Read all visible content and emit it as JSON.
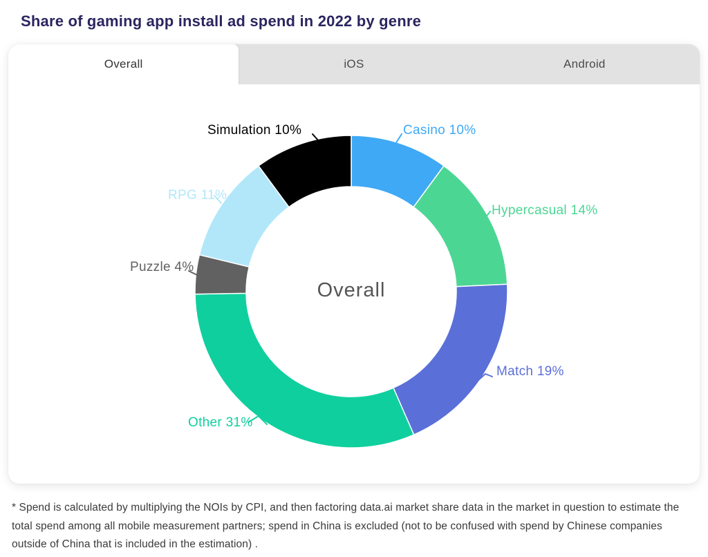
{
  "page": {
    "title": "Share of gaming app install ad spend in 2022 by genre",
    "footnote": "* Spend is calculated by multiplying the NOIs by CPI, and then factoring data.ai market share data in the market in question to estimate the total spend among all mobile measurement partners; spend in China is excluded (not to be confused with spend by Chinese companies outside of China that is included in the estimation) ."
  },
  "tabs": [
    {
      "label": "Overall",
      "active": true
    },
    {
      "label": "iOS",
      "active": false
    },
    {
      "label": "Android",
      "active": false
    }
  ],
  "chart_data": {
    "type": "pie",
    "subtype": "donut",
    "title": "Share of gaming app install ad spend in 2022 by genre",
    "center_label": "Overall",
    "unit": "%",
    "start_angle_deg": 0,
    "direction": "clockwise",
    "segments": [
      {
        "name": "Casino",
        "value": 10,
        "label": "Casino 10%",
        "color": "#3FA9F5"
      },
      {
        "name": "Hypercasual",
        "value": 14,
        "label": "Hypercasual 14%",
        "color": "#4CD694"
      },
      {
        "name": "Match",
        "value": 19,
        "label": "Match 19%",
        "color": "#5A6FD8"
      },
      {
        "name": "Other",
        "value": 31,
        "label": "Other 31%",
        "color": "#10CF9E"
      },
      {
        "name": "Puzzle",
        "value": 4,
        "label": "Puzzle 4%",
        "color": "#616161"
      },
      {
        "name": "RPG",
        "value": 11,
        "label": "RPG 11%",
        "color": "#B2E7FA"
      },
      {
        "name": "Simulation",
        "value": 10,
        "label": "Simulation 10%",
        "color": "#000000"
      }
    ]
  },
  "colors": {
    "title_text": "#2B2560",
    "card_bg": "#FFFFFF",
    "tab_strip_bg": "#E2E2E2",
    "active_tab_bg": "#FFFFFF",
    "center_label_text": "#555555",
    "footnote_text": "#3A3A3A"
  }
}
